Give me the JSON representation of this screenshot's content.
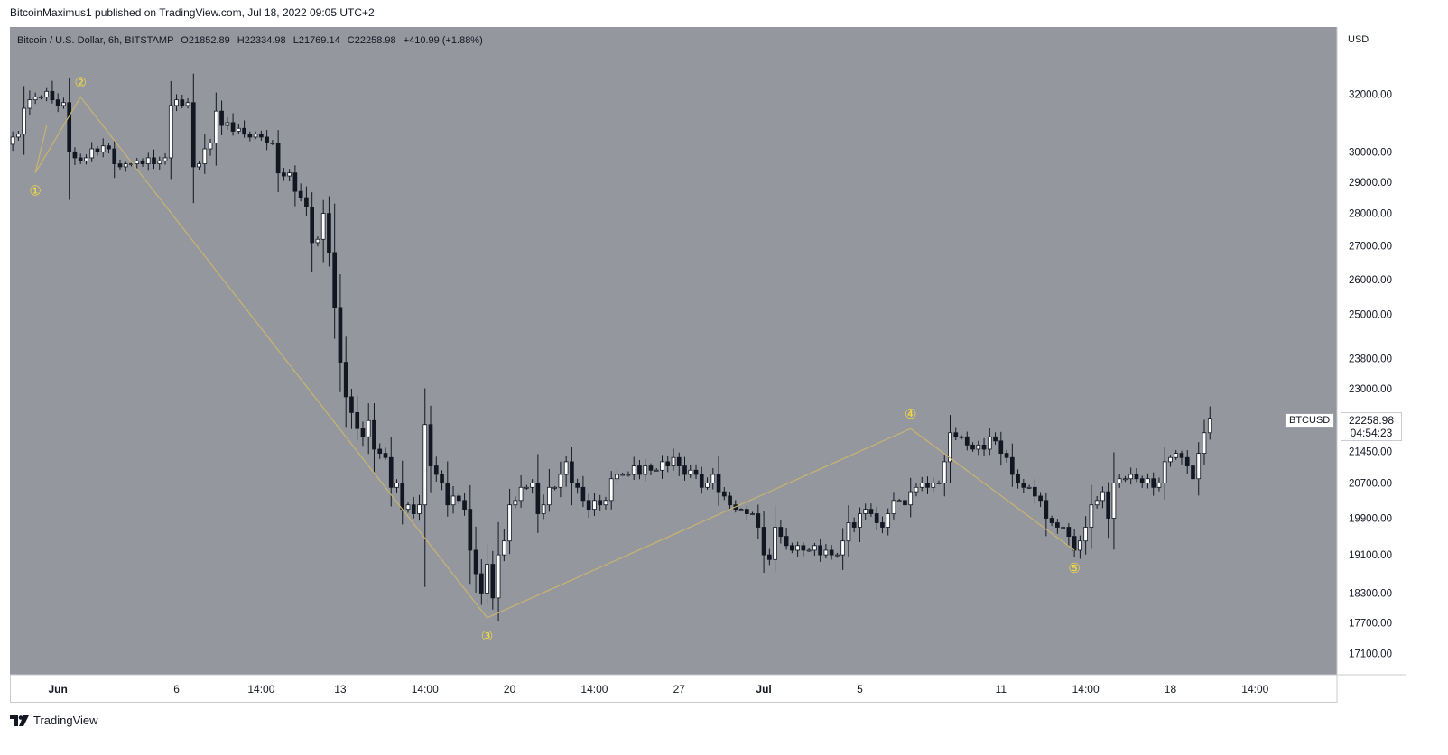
{
  "publisher_line": "BitcoinMaximus1 published on TradingView.com, Jul 18, 2022 09:05 UTC+2",
  "legend": {
    "symbol": "Bitcoin / U.S. Dollar, 6h, BITSTAMP",
    "o_label": "O",
    "o_value": "21852.89",
    "h_label": "H",
    "h_value": "22334.98",
    "l_label": "L",
    "l_value": "21769.14",
    "c_label": "C",
    "c_value": "22258.98",
    "change": "+410.99 (+1.88%)"
  },
  "footer_brand": "TradingView",
  "price_tag": {
    "symbol": "BTCUSD",
    "price": "22258.98",
    "countdown": "04:54:23"
  },
  "colors": {
    "plot_bg": "#95979f",
    "up": "#ffffff",
    "down": "#131722",
    "wave_line": "#c8b46e",
    "wave_label": "#f5dc3c"
  },
  "chart_data": {
    "type": "candlestick",
    "title": "Bitcoin / U.S. Dollar, 6h, BITSTAMP",
    "currency_label": "USD",
    "scale": "log",
    "ylim": [
      16700,
      34500
    ],
    "y_ticks": [
      "32000.00",
      "30000.00",
      "29000.00",
      "28000.00",
      "27000.00",
      "26000.00",
      "25000.00",
      "23800.00",
      "23000.00",
      "21450.00",
      "20700.00",
      "19900.00",
      "19100.00",
      "18300.00",
      "17700.00",
      "17100.00"
    ],
    "x_ticks": [
      {
        "label": "Jun",
        "bar": 8,
        "bold": true
      },
      {
        "label": "6",
        "bar": 29
      },
      {
        "label": "14:00",
        "bar": 44
      },
      {
        "label": "13",
        "bar": 58
      },
      {
        "label": "14:00",
        "bar": 73
      },
      {
        "label": "20",
        "bar": 88
      },
      {
        "label": "14:00",
        "bar": 103
      },
      {
        "label": "27",
        "bar": 118
      },
      {
        "label": "Jul",
        "bar": 133,
        "bold": true
      },
      {
        "label": "5",
        "bar": 150
      },
      {
        "label": "11",
        "bar": 175
      },
      {
        "label": "14:00",
        "bar": 190
      },
      {
        "label": "18",
        "bar": 205
      },
      {
        "label": "14:00",
        "bar": 220
      }
    ],
    "bar_count_axis": 235,
    "closes": [
      30500,
      30600,
      31500,
      31800,
      31900,
      31900,
      32100,
      31800,
      31600,
      31700,
      30000,
      29800,
      29700,
      29800,
      30100,
      30000,
      30200,
      30100,
      29600,
      29500,
      29600,
      29600,
      29700,
      29600,
      29800,
      29600,
      29700,
      29800,
      31600,
      31800,
      31600,
      31700,
      29500,
      29600,
      30100,
      30300,
      31400,
      30900,
      31000,
      30700,
      30800,
      30600,
      30500,
      30600,
      30500,
      30300,
      30300,
      29300,
      29200,
      29300,
      28700,
      28500,
      28200,
      27100,
      27200,
      28000,
      26800,
      25200,
      23700,
      22800,
      22400,
      22000,
      21800,
      22200,
      21500,
      21400,
      21300,
      20600,
      20700,
      20100,
      20200,
      20000,
      20200,
      22100,
      21100,
      20900,
      20700,
      20200,
      20400,
      20300,
      20100,
      19200,
      18700,
      18300,
      18900,
      18200,
      19100,
      19400,
      20200,
      20300,
      20600,
      20600,
      20700,
      20000,
      20200,
      20600,
      20600,
      20900,
      21200,
      20700,
      20600,
      20300,
      20100,
      20300,
      20200,
      20300,
      20800,
      20900,
      20900,
      20900,
      21100,
      20900,
      21100,
      21000,
      21000,
      21200,
      21100,
      21300,
      21100,
      20900,
      21000,
      20900,
      20600,
      20700,
      20900,
      20500,
      20400,
      20200,
      20100,
      20100,
      20000,
      20000,
      19700,
      19100,
      19000,
      19700,
      19500,
      19300,
      19200,
      19300,
      19200,
      19200,
      19300,
      19100,
      19200,
      19100,
      19100,
      19400,
      19800,
      19700,
      20000,
      20100,
      20000,
      19800,
      19700,
      20000,
      20300,
      20300,
      20200,
      20500,
      20600,
      20700,
      20600,
      20700,
      20700,
      21200,
      21900,
      21800,
      21800,
      21600,
      21500,
      21600,
      21500,
      21800,
      21700,
      21400,
      21300,
      20900,
      20700,
      20600,
      20600,
      20400,
      20300,
      19900,
      19800,
      19700,
      19700,
      19500,
      19200,
      19400,
      19700,
      20200,
      20300,
      20500,
      19900,
      20700,
      20800,
      20800,
      20900,
      20800,
      20700,
      20800,
      20600,
      20700,
      21200,
      21300,
      21400,
      21300,
      21100,
      20800,
      21400,
      21900,
      22260
    ],
    "wave_points": [
      {
        "label": "①",
        "bar": 4,
        "price": 29300,
        "pos": "below"
      },
      {
        "label": "②",
        "bar": 12,
        "price": 31900,
        "pos": "above"
      },
      {
        "label": "③",
        "bar": 84,
        "price": 17800,
        "pos": "below"
      },
      {
        "label": "④",
        "bar": 159,
        "price": 22000,
        "pos": "above"
      },
      {
        "label": "⑤",
        "bar": 188,
        "price": 19200,
        "pos": "below"
      }
    ],
    "last_price": 22258.98
  }
}
